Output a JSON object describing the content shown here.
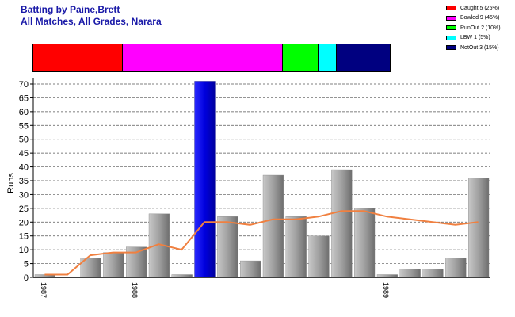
{
  "title": "Batting by Paine,Brett",
  "subtitle": "All Matches, All Grades, Narara",
  "legend": [
    {
      "label": "Caught 5 (25%)",
      "color": "#ff0000",
      "pct": 25
    },
    {
      "label": "Bowled 9 (45%)",
      "color": "#ff00ff",
      "pct": 45
    },
    {
      "label": "RunOut 2 (10%)",
      "color": "#00ff00",
      "pct": 10
    },
    {
      "label": "LBW 1 (5%)",
      "color": "#00ffff",
      "pct": 5
    },
    {
      "label": "NotOut 3 (15%)",
      "color": "#000080",
      "pct": 15
    }
  ],
  "chart_data": {
    "type": "bar",
    "ylabel": "Runs",
    "ylim": [
      0,
      70
    ],
    "yticks": [
      0,
      5,
      10,
      15,
      20,
      25,
      30,
      35,
      40,
      45,
      50,
      55,
      60,
      65,
      70
    ],
    "grid": true,
    "values": [
      1,
      0,
      7,
      9,
      11,
      23,
      1,
      71,
      22,
      6,
      37,
      22,
      15,
      39,
      25,
      1,
      3,
      3,
      7,
      36
    ],
    "highlight_index": 7,
    "trend": [
      1,
      1,
      8,
      9,
      9,
      12,
      10,
      20,
      20,
      19,
      21,
      21,
      22,
      24,
      24,
      22,
      21,
      20,
      19,
      20
    ],
    "xtick_labels": [
      {
        "index": 0,
        "label": "1987"
      },
      {
        "index": 4,
        "label": "1988"
      },
      {
        "index": 15,
        "label": "1989"
      }
    ],
    "colors": {
      "bar": "#a6a6a6",
      "highlight": "#0000dd",
      "trend": "#f08040"
    }
  }
}
